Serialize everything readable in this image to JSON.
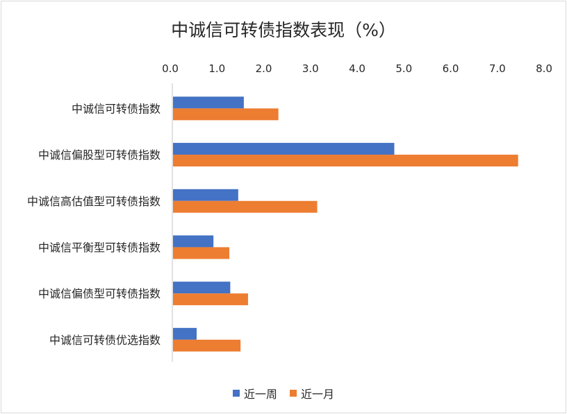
{
  "chart_data": {
    "type": "bar",
    "orientation": "horizontal",
    "title": "中诚信可转债指数表现（%）",
    "categories": [
      "中诚信可转债指数",
      "中诚信偏股型可转债指数",
      "中诚信高估值型可转债指数",
      "中诚信平衡型可转债指数",
      "中诚信偏债型可转债指数",
      "中诚信可转债优选指数"
    ],
    "series": [
      {
        "name": "近一周",
        "color": "#4472C4",
        "values": [
          1.53,
          4.75,
          1.41,
          0.88,
          1.24,
          0.52
        ]
      },
      {
        "name": "近一月",
        "color": "#ED7D31",
        "values": [
          2.27,
          7.4,
          3.1,
          1.22,
          1.62,
          1.46
        ]
      }
    ],
    "xlim": [
      0,
      8
    ],
    "ticks": [
      "0.0",
      "1.0",
      "2.0",
      "3.0",
      "4.0",
      "5.0",
      "6.0",
      "7.0",
      "8.0"
    ],
    "axis_position": "top",
    "grid": false,
    "legend": "bottom"
  }
}
